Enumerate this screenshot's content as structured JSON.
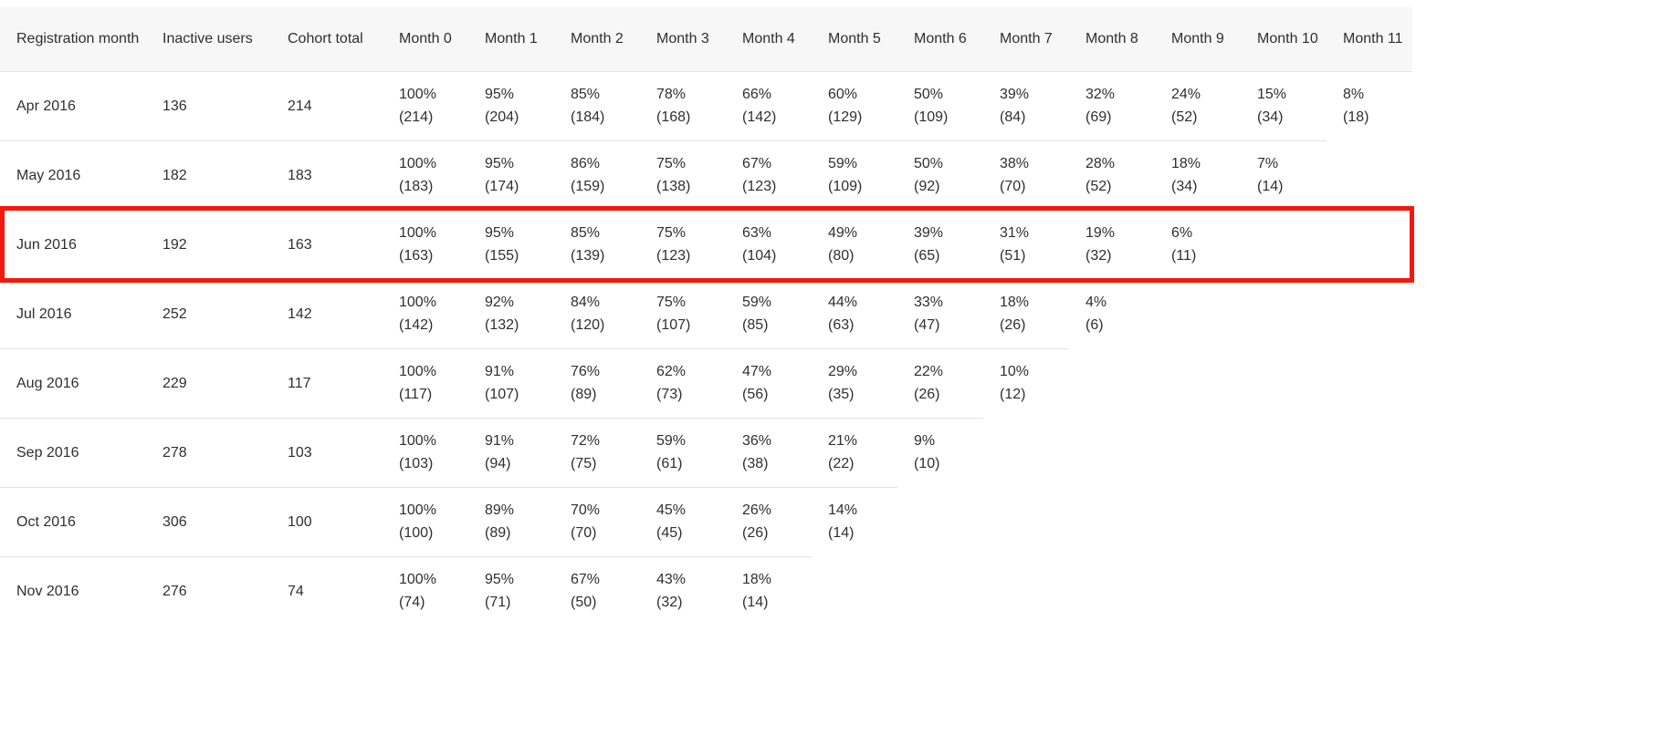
{
  "chart_data": {
    "type": "table",
    "title": "",
    "columns": [
      "Registration month",
      "Inactive users",
      "Cohort total",
      "Month 0",
      "Month 1",
      "Month 2",
      "Month 3",
      "Month 4",
      "Month 5",
      "Month 6",
      "Month 7",
      "Month 8",
      "Month 9",
      "Month 10",
      "Month 11"
    ],
    "rows": [
      {
        "registration_month": "Apr 2016",
        "inactive_users": "136",
        "cohort_total": "214",
        "highlighted": false,
        "months": [
          [
            "100%",
            "(214)"
          ],
          [
            "95%",
            "(204)"
          ],
          [
            "85%",
            "(184)"
          ],
          [
            "78%",
            "(168)"
          ],
          [
            "66%",
            "(142)"
          ],
          [
            "60%",
            "(129)"
          ],
          [
            "50%",
            "(109)"
          ],
          [
            "39%",
            "(84)"
          ],
          [
            "32%",
            "(69)"
          ],
          [
            "24%",
            "(52)"
          ],
          [
            "15%",
            "(34)"
          ],
          [
            "8%",
            "(18)"
          ]
        ]
      },
      {
        "registration_month": "May 2016",
        "inactive_users": "182",
        "cohort_total": "183",
        "highlighted": false,
        "months": [
          [
            "100%",
            "(183)"
          ],
          [
            "95%",
            "(174)"
          ],
          [
            "86%",
            "(159)"
          ],
          [
            "75%",
            "(138)"
          ],
          [
            "67%",
            "(123)"
          ],
          [
            "59%",
            "(109)"
          ],
          [
            "50%",
            "(92)"
          ],
          [
            "38%",
            "(70)"
          ],
          [
            "28%",
            "(52)"
          ],
          [
            "18%",
            "(34)"
          ],
          [
            "7%",
            "(14)"
          ]
        ]
      },
      {
        "registration_month": "Jun 2016",
        "inactive_users": "192",
        "cohort_total": "163",
        "highlighted": true,
        "months": [
          [
            "100%",
            "(163)"
          ],
          [
            "95%",
            "(155)"
          ],
          [
            "85%",
            "(139)"
          ],
          [
            "75%",
            "(123)"
          ],
          [
            "63%",
            "(104)"
          ],
          [
            "49%",
            "(80)"
          ],
          [
            "39%",
            "(65)"
          ],
          [
            "31%",
            "(51)"
          ],
          [
            "19%",
            "(32)"
          ],
          [
            "6%",
            "(11)"
          ]
        ]
      },
      {
        "registration_month": "Jul 2016",
        "inactive_users": "252",
        "cohort_total": "142",
        "highlighted": false,
        "months": [
          [
            "100%",
            "(142)"
          ],
          [
            "92%",
            "(132)"
          ],
          [
            "84%",
            "(120)"
          ],
          [
            "75%",
            "(107)"
          ],
          [
            "59%",
            "(85)"
          ],
          [
            "44%",
            "(63)"
          ],
          [
            "33%",
            "(47)"
          ],
          [
            "18%",
            "(26)"
          ],
          [
            "4%",
            "(6)"
          ]
        ]
      },
      {
        "registration_month": "Aug 2016",
        "inactive_users": "229",
        "cohort_total": "117",
        "highlighted": false,
        "months": [
          [
            "100%",
            "(117)"
          ],
          [
            "91%",
            "(107)"
          ],
          [
            "76%",
            "(89)"
          ],
          [
            "62%",
            "(73)"
          ],
          [
            "47%",
            "(56)"
          ],
          [
            "29%",
            "(35)"
          ],
          [
            "22%",
            "(26)"
          ],
          [
            "10%",
            "(12)"
          ]
        ]
      },
      {
        "registration_month": "Sep 2016",
        "inactive_users": "278",
        "cohort_total": "103",
        "highlighted": false,
        "months": [
          [
            "100%",
            "(103)"
          ],
          [
            "91%",
            "(94)"
          ],
          [
            "72%",
            "(75)"
          ],
          [
            "59%",
            "(61)"
          ],
          [
            "36%",
            "(38)"
          ],
          [
            "21%",
            "(22)"
          ],
          [
            "9%",
            "(10)"
          ]
        ]
      },
      {
        "registration_month": "Oct 2016",
        "inactive_users": "306",
        "cohort_total": "100",
        "highlighted": false,
        "months": [
          [
            "100%",
            "(100)"
          ],
          [
            "89%",
            "(89)"
          ],
          [
            "70%",
            "(70)"
          ],
          [
            "45%",
            "(45)"
          ],
          [
            "26%",
            "(26)"
          ],
          [
            "14%",
            "(14)"
          ]
        ]
      },
      {
        "registration_month": "Nov 2016",
        "inactive_users": "276",
        "cohort_total": "74",
        "highlighted": false,
        "months": [
          [
            "100%",
            "(74)"
          ],
          [
            "95%",
            "(71)"
          ],
          [
            "67%",
            "(50)"
          ],
          [
            "43%",
            "(32)"
          ],
          [
            "18%",
            "(14)"
          ]
        ]
      }
    ],
    "layout_hints": {
      "month_column_count": 12,
      "grid": "horizontal row dividers only, stepped to populated cells",
      "highlighted_row": "Jun 2016"
    }
  },
  "highlight": {
    "row": "Jun 2016",
    "border_color": "#f2180c"
  },
  "colors": {
    "header_background": "#f7f7f7",
    "row_divider": "#e2e2e2",
    "text": "#2f2f2f",
    "page_background": "#ffffff"
  }
}
